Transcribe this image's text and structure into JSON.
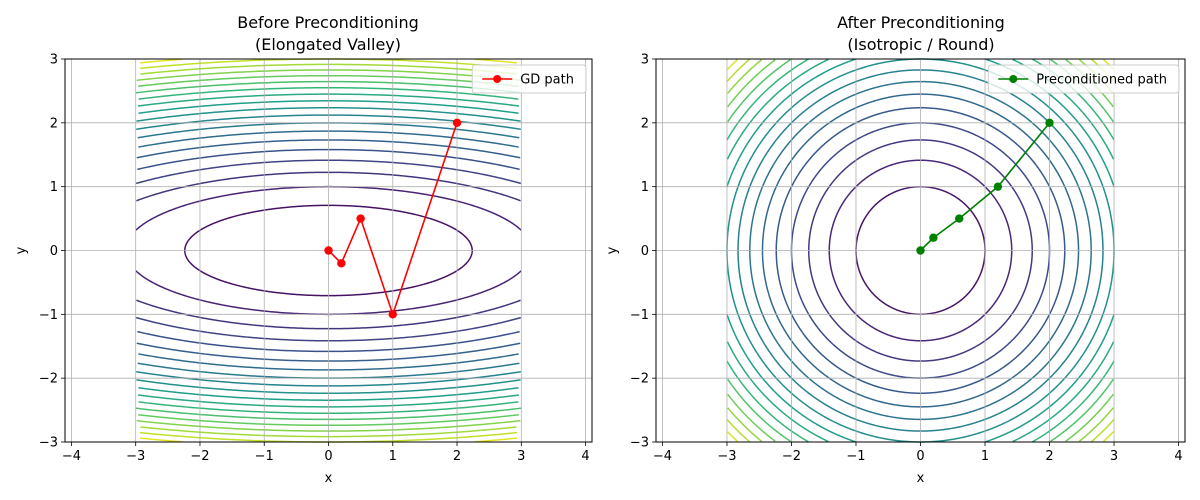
{
  "chart_data": [
    {
      "type": "line",
      "title_lines": [
        "Before Preconditioning",
        "(Elongated Valley)"
      ],
      "xlabel": "x",
      "ylabel": "y",
      "xlim": [
        -4.1,
        4.1
      ],
      "ylim": [
        -3,
        3
      ],
      "xticks": [
        -4,
        -3,
        -2,
        -1,
        0,
        1,
        2,
        3,
        4
      ],
      "yticks": [
        -3,
        -2,
        -1,
        0,
        1,
        2,
        3
      ],
      "xtick_labels": [
        "−4",
        "−3",
        "−2",
        "−1",
        "0",
        "1",
        "2",
        "3",
        "4"
      ],
      "ytick_labels": [
        "−3",
        "−2",
        "−1",
        "0",
        "1",
        "2",
        "3"
      ],
      "grid": true,
      "legend_position": "top-right",
      "contour": {
        "function": "x^2 + 10*y^2",
        "x_range": [
          -3,
          3
        ],
        "y_range": [
          -3,
          3
        ],
        "levels": [
          5,
          10,
          15,
          20,
          25,
          30,
          35,
          40,
          45,
          50,
          55,
          60,
          65,
          70,
          75,
          80,
          85,
          90,
          95
        ],
        "vmax": 99,
        "colormap": "viridis"
      },
      "series": [
        {
          "name": "GD path",
          "color": "#ff0000",
          "x": [
            2,
            1,
            0.5,
            0.2,
            0
          ],
          "y": [
            2,
            -1,
            0.5,
            -0.2,
            0
          ]
        }
      ]
    },
    {
      "type": "line",
      "title_lines": [
        "After Preconditioning",
        "(Isotropic / Round)"
      ],
      "xlabel": "x",
      "ylabel": "y",
      "xlim": [
        -4.1,
        4.1
      ],
      "ylim": [
        -3,
        3
      ],
      "xticks": [
        -4,
        -3,
        -2,
        -1,
        0,
        1,
        2,
        3,
        4
      ],
      "yticks": [
        -3,
        -2,
        -1,
        0,
        1,
        2,
        3
      ],
      "xtick_labels": [
        "−4",
        "−3",
        "−2",
        "−1",
        "0",
        "1",
        "2",
        "3",
        "4"
      ],
      "ytick_labels": [
        "−3",
        "−2",
        "−1",
        "0",
        "1",
        "2",
        "3"
      ],
      "grid": true,
      "legend_position": "top-right",
      "contour": {
        "function": "x^2 + y^2",
        "x_range": [
          -3,
          3
        ],
        "y_range": [
          -3,
          3
        ],
        "levels": [
          1,
          2,
          3,
          4,
          5,
          6,
          7,
          8,
          9,
          10,
          11,
          12,
          13,
          14,
          15,
          16,
          17
        ],
        "vmax": 18,
        "colormap": "viridis"
      },
      "series": [
        {
          "name": "Preconditioned path",
          "color": "#008000",
          "x": [
            2,
            1.2,
            0.6,
            0.2,
            0
          ],
          "y": [
            2,
            1,
            0.5,
            0.2,
            0
          ]
        }
      ]
    }
  ]
}
